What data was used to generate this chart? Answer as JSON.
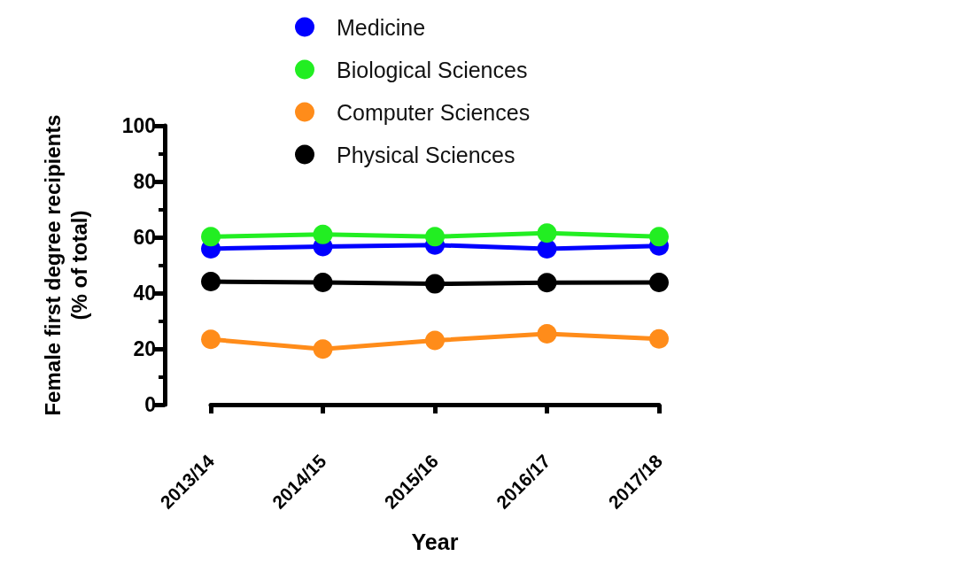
{
  "chart_data": {
    "type": "line",
    "xlabel": "Year",
    "ylabel": "Female first degree recipients\n(% of total)",
    "categories": [
      "2013/14",
      "2014/15",
      "2015/16",
      "2016/17",
      "2017/18"
    ],
    "series": [
      {
        "name": "Medicine",
        "color": "#0000ff",
        "values": [
          55.9,
          56.7,
          57.2,
          55.9,
          56.9
        ]
      },
      {
        "name": "Biological Sciences",
        "color": "#22ee22",
        "values": [
          60.2,
          61.0,
          60.2,
          61.5,
          60.2
        ]
      },
      {
        "name": "Computer Sciences",
        "color": "#ff8c1a",
        "values": [
          23.4,
          19.9,
          23.0,
          25.4,
          23.6
        ]
      },
      {
        "name": "Physical Sciences",
        "color": "#000000",
        "values": [
          44.1,
          43.8,
          43.3,
          43.7,
          43.8
        ]
      }
    ],
    "ylim": [
      0,
      100
    ],
    "yticks": [
      0,
      20,
      40,
      60,
      80,
      100
    ],
    "grid": false,
    "legend": "top",
    "marker": "circle",
    "line_style": "solid"
  }
}
